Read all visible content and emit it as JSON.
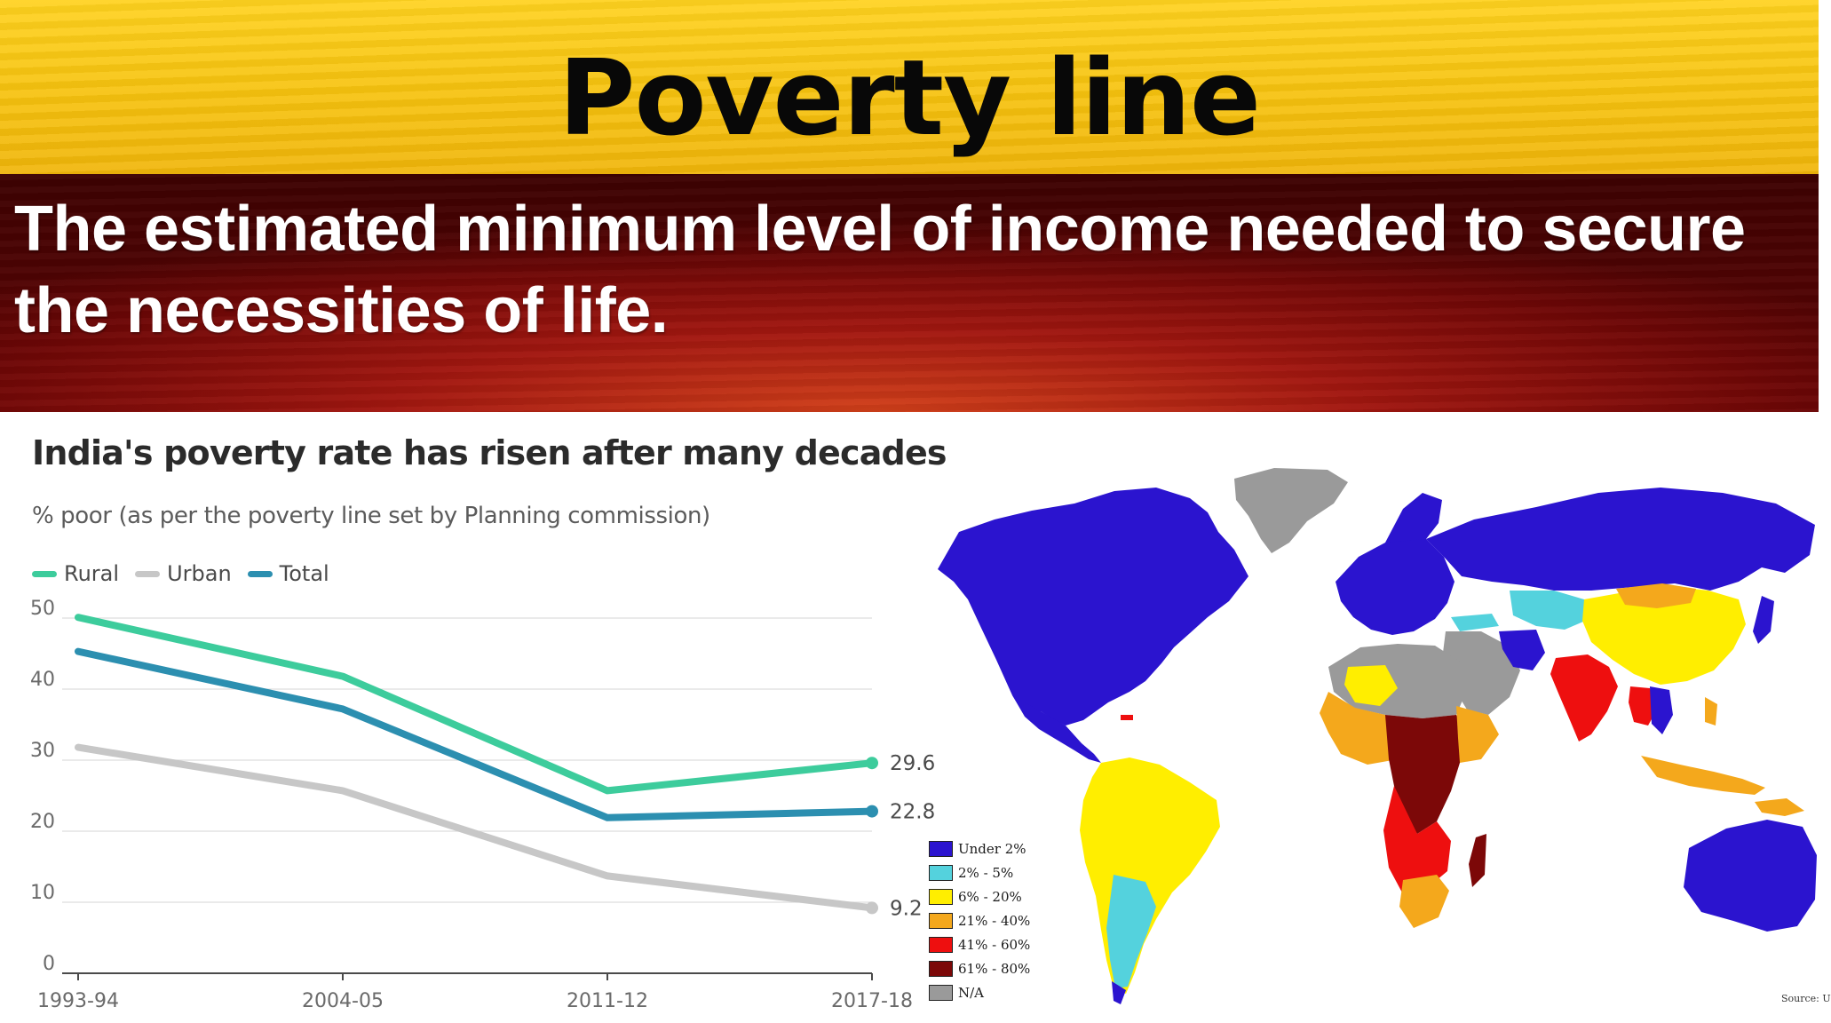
{
  "slide": {
    "title": "Poverty line",
    "definition": "The estimated minimum level of income needed to secure the necessities of life."
  },
  "chart_data": {
    "type": "line",
    "title": "India's poverty rate has risen after many decades",
    "subtitle": "% poor (as per the poverty line set by Planning commission)",
    "categories": [
      "1993-94",
      "2004-05",
      "2011-12",
      "2017-18"
    ],
    "ylim": [
      0,
      50
    ],
    "yticks": [
      0,
      10,
      20,
      30,
      40,
      50
    ],
    "grid": true,
    "legend_position": "top-left",
    "series": [
      {
        "name": "Rural",
        "values": [
          50.1,
          41.8,
          25.7,
          29.6
        ],
        "color": "#3dcc9c",
        "end_label": "29.6"
      },
      {
        "name": "Urban",
        "values": [
          31.8,
          25.7,
          13.7,
          9.2
        ],
        "color": "#c7c7c7",
        "end_label": "9.2"
      },
      {
        "name": "Total",
        "values": [
          45.3,
          37.2,
          21.9,
          22.8
        ],
        "color": "#2c8fb0",
        "end_label": "22.8"
      }
    ]
  },
  "map": {
    "legend": [
      {
        "label": "Under 2%",
        "color": "#2b14cf"
      },
      {
        "label": "2% - 5%",
        "color": "#54d2dd"
      },
      {
        "label": "6% - 20%",
        "color": "#ffee00"
      },
      {
        "label": "21% - 40%",
        "color": "#f4a81c"
      },
      {
        "label": "41% - 60%",
        "color": "#ee0f0f"
      },
      {
        "label": "61% - 80%",
        "color": "#7c0808"
      },
      {
        "label": "N/A",
        "color": "#9a9a9a"
      }
    ],
    "source": "Source: U"
  }
}
